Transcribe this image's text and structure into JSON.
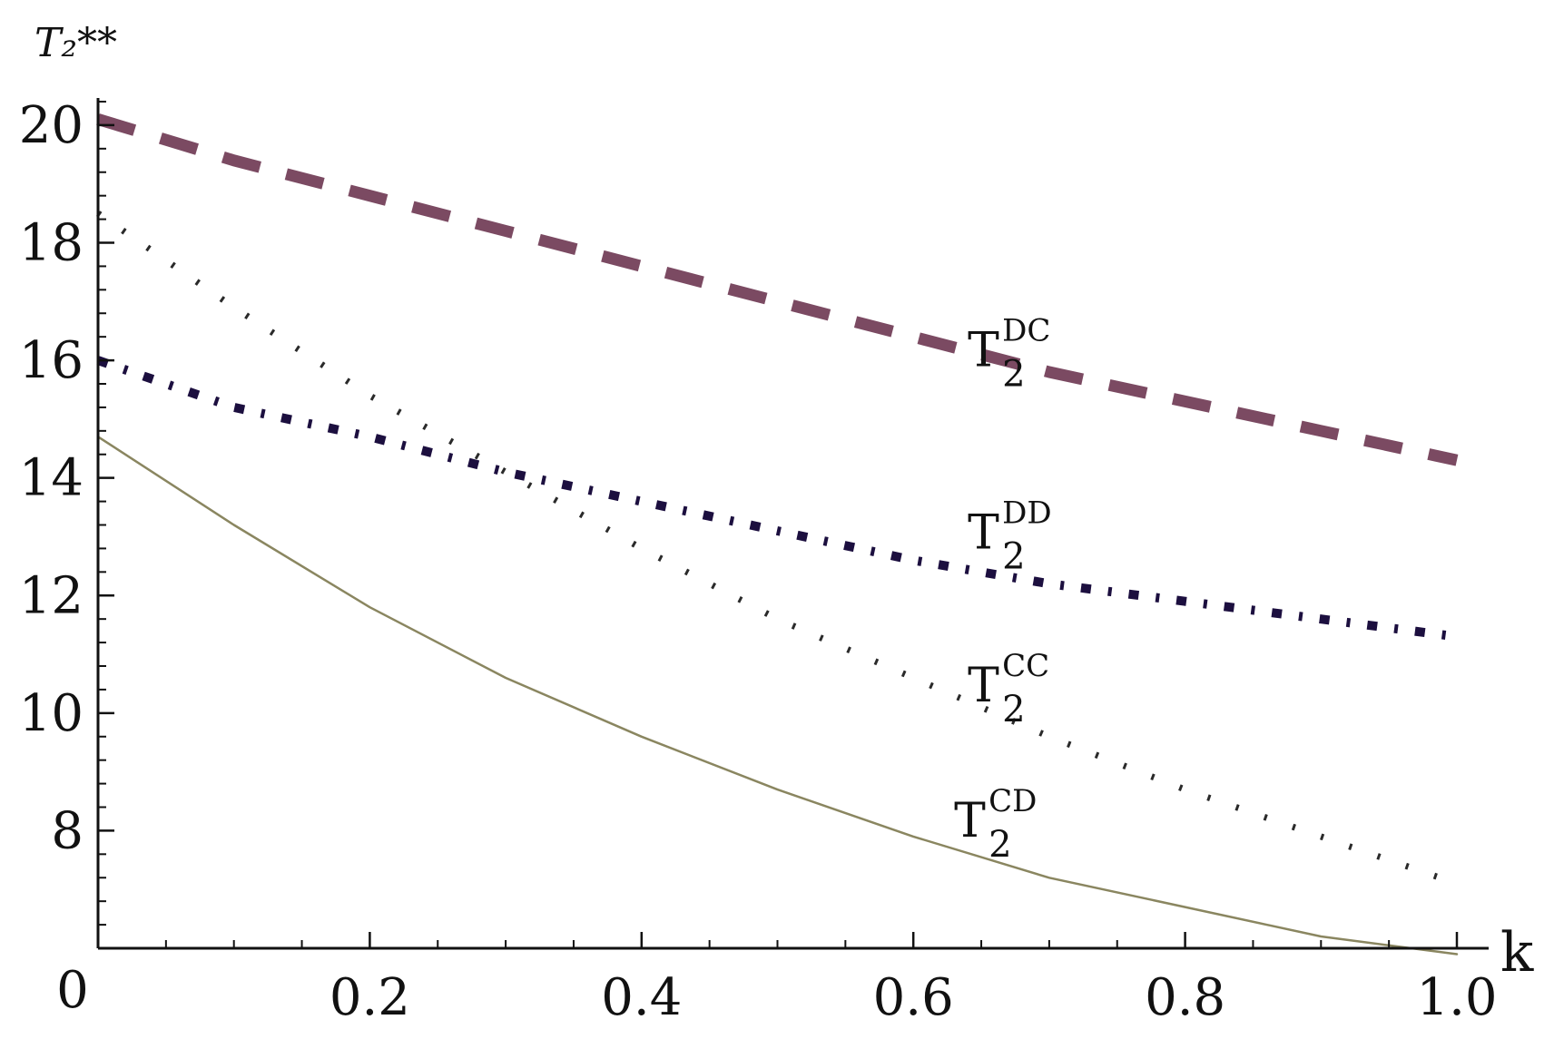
{
  "chart_data": {
    "type": "line",
    "title": "",
    "xlabel": "k",
    "ylabel": "T₂**",
    "xlim": [
      0,
      1.0
    ],
    "ylim": [
      6,
      20.4
    ],
    "origin_label": "0",
    "x_ticks": [
      {
        "value": 0.2,
        "label": "0.2"
      },
      {
        "value": 0.4,
        "label": "0.4"
      },
      {
        "value": 0.6,
        "label": "0.6"
      },
      {
        "value": 0.8,
        "label": "0.8"
      },
      {
        "value": 1.0,
        "label": "1.0"
      }
    ],
    "y_ticks": [
      {
        "value": 8,
        "label": "8"
      },
      {
        "value": 10,
        "label": "10"
      },
      {
        "value": 12,
        "label": "12"
      },
      {
        "value": 14,
        "label": "14"
      },
      {
        "value": 16,
        "label": "16"
      },
      {
        "value": 18,
        "label": "18"
      },
      {
        "value": 20,
        "label": "20"
      }
    ],
    "minor_step_x": 0.05,
    "minor_step_y": 0.4,
    "grid": false,
    "legend": "none",
    "series": [
      {
        "name": "T2DC",
        "label_main": "T",
        "label_sub": "2",
        "label_sup": "DC",
        "label_at": [
          0.64,
          15.9
        ],
        "style": "dashed",
        "color": "#7b4a62",
        "x": [
          0.0,
          0.1,
          0.2,
          0.3,
          0.4,
          0.5,
          0.6,
          0.7,
          0.8,
          0.9,
          1.0
        ],
        "y": [
          20.1,
          19.4,
          18.8,
          18.2,
          17.6,
          17.0,
          16.4,
          15.8,
          15.3,
          14.8,
          14.3
        ]
      },
      {
        "name": "T2DD",
        "label_main": "T",
        "label_sub": "2",
        "label_sup": "DD",
        "label_at": [
          0.64,
          12.8
        ],
        "style": "dashdot",
        "color": "#1c0f3f",
        "x": [
          0.0,
          0.1,
          0.2,
          0.3,
          0.4,
          0.5,
          0.6,
          0.7,
          0.8,
          0.9,
          1.0
        ],
        "y": [
          16.0,
          15.2,
          14.7,
          14.1,
          13.6,
          13.1,
          12.6,
          12.2,
          11.9,
          11.6,
          11.3
        ]
      },
      {
        "name": "T2CC",
        "label_main": "T",
        "label_sub": "2",
        "label_sup": "CC",
        "label_at": [
          0.64,
          10.2
        ],
        "style": "dotted",
        "color": "#2a2a2a",
        "x": [
          0.0,
          0.1,
          0.2,
          0.3,
          0.4,
          0.5,
          0.6,
          0.7,
          0.8,
          0.9,
          1.0
        ],
        "y": [
          18.5,
          16.9,
          15.4,
          14.1,
          12.8,
          11.6,
          10.6,
          9.6,
          8.7,
          7.9,
          7.1
        ]
      },
      {
        "name": "T2CD",
        "label_main": "T",
        "label_sub": "2",
        "label_sup": "CD",
        "label_at": [
          0.63,
          7.9
        ],
        "style": "solid",
        "color": "#8a8660",
        "x": [
          0.0,
          0.1,
          0.2,
          0.3,
          0.4,
          0.5,
          0.6,
          0.7,
          0.8,
          0.9,
          1.0
        ],
        "y": [
          14.7,
          13.2,
          11.8,
          10.6,
          9.6,
          8.7,
          7.9,
          7.2,
          6.7,
          6.2,
          5.9
        ]
      }
    ]
  }
}
